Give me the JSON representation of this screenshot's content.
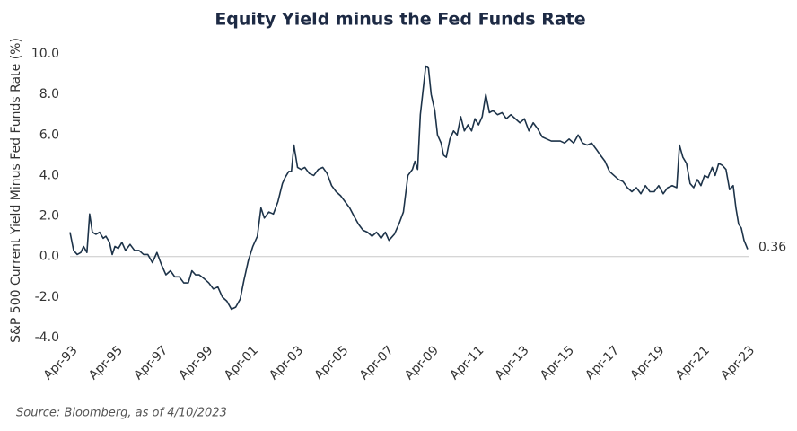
{
  "chart_data": {
    "type": "line",
    "title": "Equity Yield minus the Fed Funds Rate",
    "y_label": "S&P 500 Current Yield Minus Fed Funds Rate (%)",
    "source": "Source: Bloomberg, as of 4/10/2023",
    "zero_line": true,
    "grid": false,
    "xlim": [
      1993.25,
      2023.27
    ],
    "ylim": [
      -4,
      10
    ],
    "yticks": [
      {
        "value": 10,
        "label": "10.0"
      },
      {
        "value": 8,
        "label": "8.0"
      },
      {
        "value": 6,
        "label": "6.0"
      },
      {
        "value": 4,
        "label": "4.0"
      },
      {
        "value": 2,
        "label": "2.0"
      },
      {
        "value": 0,
        "label": "0.0"
      },
      {
        "value": -2,
        "label": "-2.0"
      },
      {
        "value": -4,
        "label": "-4.0"
      }
    ],
    "xticks": [
      {
        "value": 1993.25,
        "label": "Apr-93"
      },
      {
        "value": 1995.25,
        "label": "Apr-95"
      },
      {
        "value": 1997.25,
        "label": "Apr-97"
      },
      {
        "value": 1999.25,
        "label": "Apr-99"
      },
      {
        "value": 2001.25,
        "label": "Apr-01"
      },
      {
        "value": 2003.25,
        "label": "Apr-03"
      },
      {
        "value": 2005.25,
        "label": "Apr-05"
      },
      {
        "value": 2007.25,
        "label": "Apr-07"
      },
      {
        "value": 2009.25,
        "label": "Apr-09"
      },
      {
        "value": 2011.25,
        "label": "Apr-11"
      },
      {
        "value": 2013.25,
        "label": "Apr-13"
      },
      {
        "value": 2015.25,
        "label": "Apr-15"
      },
      {
        "value": 2017.25,
        "label": "Apr-17"
      },
      {
        "value": 2019.25,
        "label": "Apr-19"
      },
      {
        "value": 2021.25,
        "label": "Apr-21"
      },
      {
        "value": 2023.25,
        "label": "Apr-23"
      }
    ],
    "x": [
      1993.25,
      1993.41,
      1993.57,
      1993.73,
      1993.85,
      1994.0,
      1994.12,
      1994.24,
      1994.4,
      1994.56,
      1994.72,
      1994.84,
      1995.0,
      1995.12,
      1995.24,
      1995.39,
      1995.55,
      1995.71,
      1995.91,
      1996.11,
      1996.31,
      1996.51,
      1996.7,
      1996.9,
      1997.1,
      1997.3,
      1997.5,
      1997.7,
      1997.89,
      1998.09,
      1998.29,
      1998.49,
      1998.65,
      1998.81,
      1998.97,
      1999.2,
      1999.4,
      1999.6,
      1999.8,
      2000.0,
      2000.2,
      2000.4,
      2000.59,
      2000.79,
      2000.95,
      2001.15,
      2001.35,
      2001.55,
      2001.71,
      2001.86,
      2002.06,
      2002.26,
      2002.46,
      2002.66,
      2002.78,
      2002.94,
      2003.06,
      2003.17,
      2003.33,
      2003.49,
      2003.65,
      2003.85,
      2004.05,
      2004.25,
      2004.45,
      2004.64,
      2004.84,
      2005.04,
      2005.24,
      2005.44,
      2005.64,
      2005.83,
      2006.03,
      2006.23,
      2006.43,
      2006.63,
      2006.83,
      2007.03,
      2007.22,
      2007.38,
      2007.62,
      2007.82,
      2008.02,
      2008.22,
      2008.42,
      2008.53,
      2008.65,
      2008.77,
      2008.89,
      2009.01,
      2009.13,
      2009.25,
      2009.41,
      2009.53,
      2009.69,
      2009.8,
      2009.92,
      2010.08,
      2010.24,
      2010.4,
      2010.56,
      2010.72,
      2010.88,
      2011.04,
      2011.19,
      2011.35,
      2011.51,
      2011.67,
      2011.83,
      2011.99,
      2012.19,
      2012.39,
      2012.58,
      2012.78,
      2012.98,
      2013.18,
      2013.38,
      2013.58,
      2013.77,
      2013.97,
      2014.17,
      2014.37,
      2014.57,
      2014.77,
      2014.97,
      2015.16,
      2015.36,
      2015.56,
      2015.76,
      2015.96,
      2016.16,
      2016.36,
      2016.56,
      2016.75,
      2016.95,
      2017.15,
      2017.35,
      2017.55,
      2017.75,
      2017.94,
      2018.14,
      2018.34,
      2018.54,
      2018.74,
      2018.94,
      2019.13,
      2019.33,
      2019.53,
      2019.73,
      2019.93,
      2020.13,
      2020.25,
      2020.4,
      2020.56,
      2020.72,
      2020.88,
      2021.04,
      2021.2,
      2021.36,
      2021.52,
      2021.7,
      2021.83,
      2021.99,
      2022.15,
      2022.31,
      2022.47,
      2022.63,
      2022.75,
      2022.87,
      2022.99,
      2023.11,
      2023.27
    ],
    "series": [
      {
        "name": "Equity Yield minus Fed Funds",
        "color": "#1d3349",
        "values": [
          1.2,
          0.3,
          0.1,
          0.2,
          0.5,
          0.2,
          2.1,
          1.2,
          1.1,
          1.2,
          0.9,
          1.0,
          0.7,
          0.1,
          0.5,
          0.4,
          0.7,
          0.3,
          0.6,
          0.3,
          0.3,
          0.1,
          0.1,
          -0.3,
          0.2,
          -0.4,
          -0.9,
          -0.7,
          -1.0,
          -1.0,
          -1.3,
          -1.3,
          -0.7,
          -0.9,
          -0.9,
          -1.1,
          -1.3,
          -1.6,
          -1.5,
          -2.0,
          -2.2,
          -2.6,
          -2.5,
          -2.1,
          -1.2,
          -0.2,
          0.5,
          1.0,
          2.4,
          1.9,
          2.2,
          2.1,
          2.7,
          3.6,
          3.9,
          4.2,
          4.2,
          5.5,
          4.4,
          4.3,
          4.4,
          4.1,
          4.0,
          4.3,
          4.4,
          4.1,
          3.5,
          3.2,
          3.0,
          2.7,
          2.4,
          2.0,
          1.6,
          1.3,
          1.2,
          1.0,
          1.2,
          0.9,
          1.2,
          0.8,
          1.1,
          1.6,
          2.2,
          4.0,
          4.3,
          4.7,
          4.3,
          7.0,
          8.2,
          9.4,
          9.3,
          8.0,
          7.2,
          6.0,
          5.6,
          5.0,
          4.9,
          5.8,
          6.2,
          6.0,
          6.9,
          6.2,
          6.5,
          6.2,
          6.8,
          6.5,
          6.9,
          8.0,
          7.1,
          7.2,
          7.0,
          7.1,
          6.8,
          7.0,
          6.8,
          6.6,
          6.8,
          6.2,
          6.6,
          6.3,
          5.9,
          5.8,
          5.7,
          5.7,
          5.7,
          5.6,
          5.8,
          5.6,
          6.0,
          5.6,
          5.5,
          5.6,
          5.3,
          5.0,
          4.7,
          4.2,
          4.0,
          3.8,
          3.7,
          3.4,
          3.2,
          3.4,
          3.1,
          3.5,
          3.2,
          3.2,
          3.5,
          3.1,
          3.4,
          3.5,
          3.4,
          5.5,
          4.9,
          4.6,
          3.6,
          3.4,
          3.8,
          3.5,
          4.0,
          3.9,
          4.4,
          4.0,
          4.6,
          4.5,
          4.3,
          3.3,
          3.5,
          2.4,
          1.6,
          1.4,
          0.8,
          0.36
        ]
      }
    ]
  }
}
